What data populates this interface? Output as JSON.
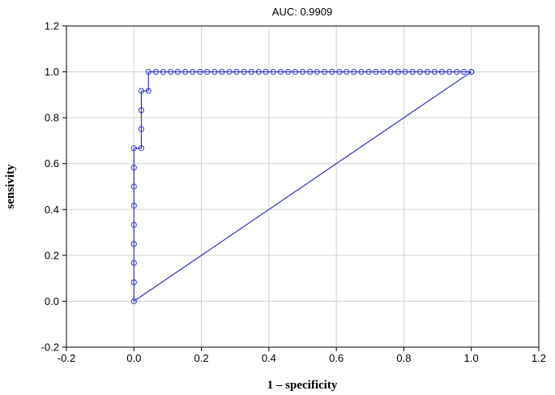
{
  "chart_data": {
    "type": "line",
    "title": "AUC:  0.9909",
    "xlabel": "1 – specificity",
    "ylabel": "sensivity",
    "xlim": [
      -0.2,
      1.2
    ],
    "ylim": [
      -0.2,
      1.2
    ],
    "xticks": [
      "-0.2",
      "0.0",
      "0.2",
      "0.4",
      "0.6",
      "0.8",
      "1.0",
      "1.2"
    ],
    "yticks": [
      "-0.2",
      "0.0",
      "0.2",
      "0.4",
      "0.6",
      "0.8",
      "1.0",
      "1.2"
    ],
    "grid": true,
    "series": [
      {
        "color": "#3333cc",
        "markers": "open-circle",
        "x": [
          0,
          0,
          0,
          0,
          0,
          0,
          0,
          0,
          0,
          0.022,
          0.022,
          0.022,
          0.022,
          0.043,
          0.043,
          0.065,
          0.087,
          0.109,
          0.13,
          0.152,
          0.174,
          0.196,
          0.217,
          0.239,
          0.261,
          0.283,
          0.304,
          0.326,
          0.348,
          0.37,
          0.391,
          0.413,
          0.435,
          0.457,
          0.478,
          0.5,
          0.522,
          0.543,
          0.565,
          0.587,
          0.609,
          0.63,
          0.652,
          0.674,
          0.696,
          0.717,
          0.739,
          0.761,
          0.783,
          0.804,
          0.826,
          0.848,
          0.87,
          0.891,
          0.913,
          0.935,
          0.957,
          0.978,
          1.0,
          1.0
        ],
        "y": [
          0,
          0.083,
          0.167,
          0.25,
          0.333,
          0.417,
          0.5,
          0.583,
          0.667,
          0.667,
          0.75,
          0.833,
          0.917,
          0.917,
          1.0,
          1.0,
          1.0,
          1.0,
          1.0,
          1.0,
          1.0,
          1.0,
          1.0,
          1.0,
          1.0,
          1.0,
          1.0,
          1.0,
          1.0,
          1.0,
          1.0,
          1.0,
          1.0,
          1.0,
          1.0,
          1.0,
          1.0,
          1.0,
          1.0,
          1.0,
          1.0,
          1.0,
          1.0,
          1.0,
          1.0,
          1.0,
          1.0,
          1.0,
          1.0,
          1.0,
          1.0,
          1.0,
          1.0,
          1.0,
          1.0,
          1.0,
          1.0,
          1.0,
          1.0,
          1.0
        ]
      }
    ],
    "reference_line": {
      "x": [
        0,
        1
      ],
      "y": [
        0,
        1
      ],
      "color": "#3333cc"
    }
  }
}
